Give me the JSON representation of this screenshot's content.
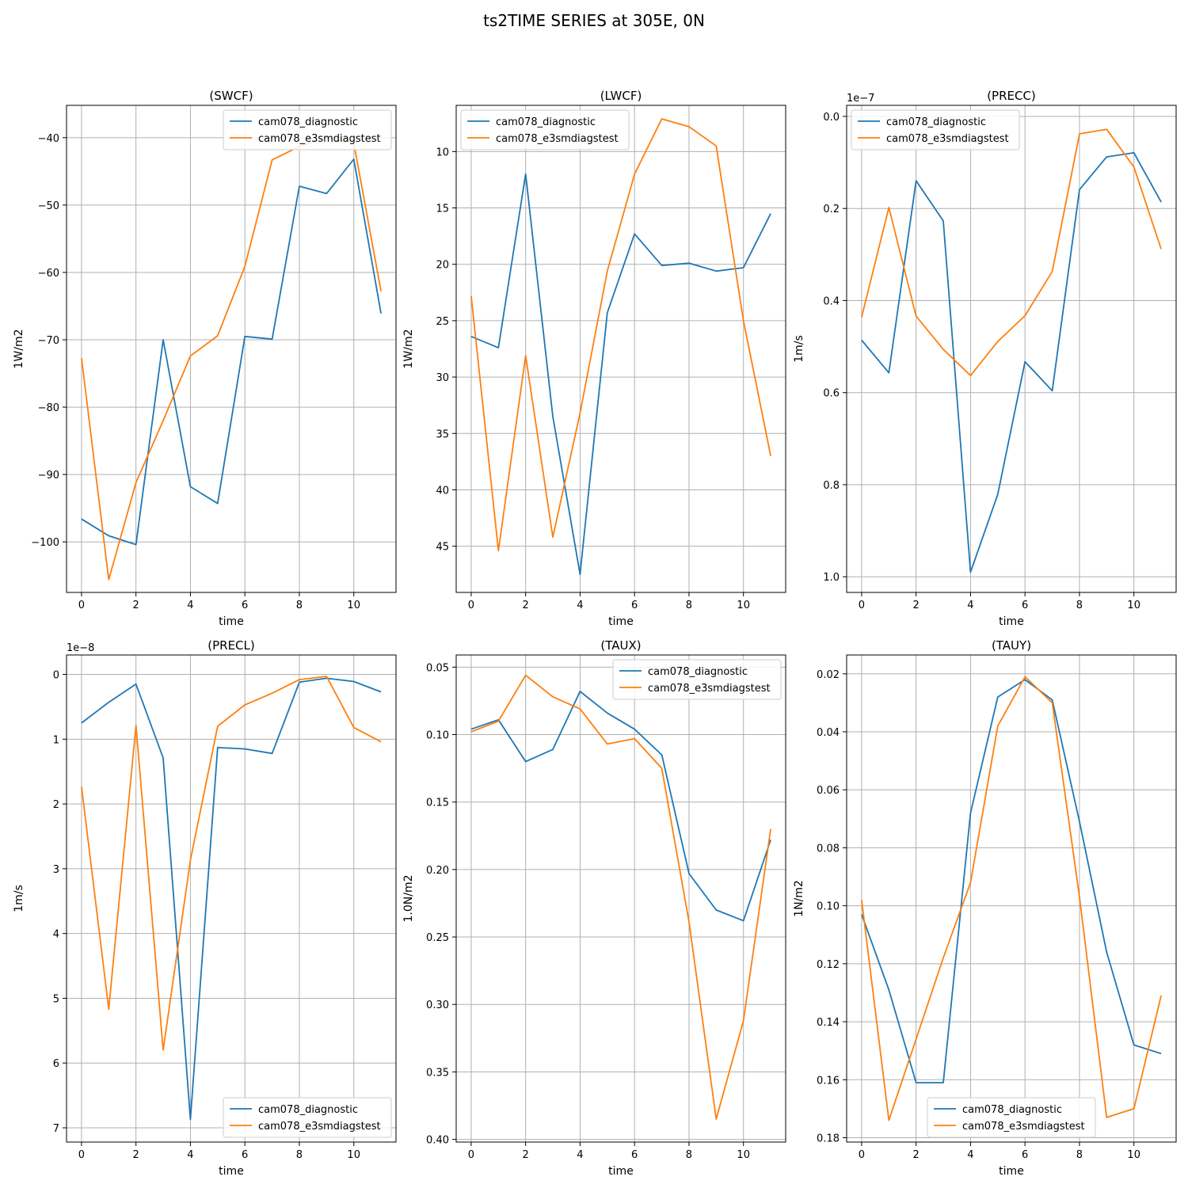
{
  "figure": {
    "suptitle": "ts2TIME SERIES at 305E, 0N",
    "colors": {
      "series_0": "#1f77b4",
      "series_1": "#ff7f0e",
      "grid": "#b0b0b0",
      "axes": "#000000"
    }
  },
  "chart_data": [
    {
      "type": "line",
      "title": "(SWCF)",
      "xlabel": "time",
      "ylabel": "1W/m2",
      "x": [
        0,
        1,
        2,
        3,
        4,
        5,
        6,
        7,
        8,
        9,
        10,
        11
      ],
      "xlim": [
        -0.55,
        11.55
      ],
      "xticks": [
        0,
        2,
        4,
        6,
        8,
        10
      ],
      "xtick_labels": [
        "0",
        "2",
        "4",
        "6",
        "8",
        "10"
      ],
      "ylim": [
        -107.5,
        -35.2
      ],
      "y_inverted": false,
      "yticks": [
        -100,
        -90,
        -80,
        -70,
        -60,
        -50,
        -40
      ],
      "ytick_labels": [
        "−100",
        "−90",
        "−80",
        "−70",
        "−60",
        "−50",
        "−40"
      ],
      "offset_text": "",
      "grid": true,
      "legend": "upper right",
      "series": [
        {
          "name": "cam078_diagnostic",
          "color": "#1f77b4",
          "values": [
            -96.6,
            -99.1,
            -100.4,
            -70.0,
            -91.8,
            -94.3,
            -69.5,
            -69.9,
            -47.2,
            -48.3,
            -43.2,
            -66.1
          ]
        },
        {
          "name": "cam078_e3smdiagstest",
          "color": "#ff7f0e",
          "values": [
            -72.7,
            -105.6,
            -91.2,
            -82.0,
            -72.4,
            -69.4,
            -59.1,
            -43.3,
            -41.3,
            -40.0,
            -40.8,
            -62.8
          ]
        }
      ]
    },
    {
      "type": "line",
      "title": "(LWCF)",
      "xlabel": "time",
      "ylabel": "1W/m2",
      "x": [
        0,
        1,
        2,
        3,
        4,
        5,
        6,
        7,
        8,
        9,
        10,
        11
      ],
      "xlim": [
        -0.55,
        11.55
      ],
      "xticks": [
        0,
        2,
        4,
        6,
        8,
        10
      ],
      "xtick_labels": [
        "0",
        "2",
        "4",
        "6",
        "8",
        "10"
      ],
      "ylim": [
        5.9,
        49.1
      ],
      "y_inverted": true,
      "yticks": [
        10,
        15,
        20,
        25,
        30,
        35,
        40,
        45
      ],
      "ytick_labels": [
        "10",
        "15",
        "20",
        "25",
        "30",
        "35",
        "40",
        "45"
      ],
      "offset_text": "",
      "grid": true,
      "legend": "upper left",
      "series": [
        {
          "name": "cam078_diagnostic",
          "color": "#1f77b4",
          "values": [
            26.4,
            27.4,
            12.0,
            33.5,
            47.5,
            24.3,
            17.3,
            20.1,
            19.9,
            20.6,
            20.3,
            15.5
          ]
        },
        {
          "name": "cam078_e3smdiagstest",
          "color": "#ff7f0e",
          "values": [
            22.8,
            45.4,
            28.1,
            44.2,
            33.2,
            20.6,
            12.0,
            7.1,
            7.8,
            9.5,
            25.0,
            37.0
          ]
        }
      ]
    },
    {
      "type": "line",
      "title": "(PRECC)",
      "xlabel": "time",
      "ylabel": "1m/s",
      "x": [
        0,
        1,
        2,
        3,
        4,
        5,
        6,
        7,
        8,
        9,
        10,
        11
      ],
      "xlim": [
        -0.55,
        11.55
      ],
      "xticks": [
        0,
        2,
        4,
        6,
        8,
        10
      ],
      "xtick_labels": [
        "0",
        "2",
        "4",
        "6",
        "8",
        "10"
      ],
      "ylim": [
        -0.024,
        1.034
      ],
      "y_inverted": true,
      "yticks": [
        0.0,
        0.2,
        0.4,
        0.6,
        0.8,
        1.0
      ],
      "ytick_labels": [
        "0.0",
        "0.2",
        "0.4",
        "0.6",
        "0.8",
        "1.0"
      ],
      "offset_text": "1e−7",
      "grid": true,
      "legend": "upper left",
      "series": [
        {
          "name": "cam078_diagnostic",
          "color": "#1f77b4",
          "values": [
            0.486,
            0.557,
            0.14,
            0.227,
            0.99,
            0.821,
            0.533,
            0.596,
            0.159,
            0.088,
            0.079,
            0.186
          ]
        },
        {
          "name": "cam078_e3smdiagstest",
          "color": "#ff7f0e",
          "values": [
            0.436,
            0.198,
            0.434,
            0.506,
            0.563,
            0.489,
            0.433,
            0.337,
            0.038,
            0.028,
            0.11,
            0.288
          ]
        }
      ]
    },
    {
      "type": "line",
      "title": "(PRECL)",
      "xlabel": "time",
      "ylabel": "1m/s",
      "x": [
        0,
        1,
        2,
        3,
        4,
        5,
        6,
        7,
        8,
        9,
        10,
        11
      ],
      "xlim": [
        -0.55,
        11.55
      ],
      "xticks": [
        0,
        2,
        4,
        6,
        8,
        10
      ],
      "xtick_labels": [
        "0",
        "2",
        "4",
        "6",
        "8",
        "10"
      ],
      "ylim": [
        -0.3,
        7.22
      ],
      "y_inverted": true,
      "yticks": [
        0,
        1,
        2,
        3,
        4,
        5,
        6,
        7
      ],
      "ytick_labels": [
        "0",
        "1",
        "2",
        "3",
        "4",
        "5",
        "6",
        "7"
      ],
      "offset_text": "1e−8",
      "grid": true,
      "legend": "lower right",
      "series": [
        {
          "name": "cam078_diagnostic",
          "color": "#1f77b4",
          "values": [
            0.75,
            0.43,
            0.15,
            1.29,
            6.87,
            1.13,
            1.15,
            1.22,
            0.12,
            0.06,
            0.11,
            0.27
          ]
        },
        {
          "name": "cam078_e3smdiagstest",
          "color": "#ff7f0e",
          "values": [
            1.73,
            5.17,
            0.79,
            5.8,
            2.87,
            0.8,
            0.47,
            0.29,
            0.08,
            0.03,
            0.82,
            1.04
          ]
        }
      ]
    },
    {
      "type": "line",
      "title": "(TAUX)",
      "xlabel": "time",
      "ylabel": "1.0N/m2",
      "x": [
        0,
        1,
        2,
        3,
        4,
        5,
        6,
        7,
        8,
        9,
        10,
        11
      ],
      "xlim": [
        -0.55,
        11.55
      ],
      "xticks": [
        0,
        2,
        4,
        6,
        8,
        10
      ],
      "xtick_labels": [
        "0",
        "2",
        "4",
        "6",
        "8",
        "10"
      ],
      "ylim": [
        0.041,
        0.402
      ],
      "y_inverted": true,
      "yticks": [
        0.05,
        0.1,
        0.15,
        0.2,
        0.25,
        0.3,
        0.35,
        0.4
      ],
      "ytick_labels": [
        "0.05",
        "0.10",
        "0.15",
        "0.20",
        "0.25",
        "0.30",
        "0.35",
        "0.40"
      ],
      "offset_text": "",
      "grid": true,
      "legend": "upper right",
      "series": [
        {
          "name": "cam078_diagnostic",
          "color": "#1f77b4",
          "values": [
            0.096,
            0.089,
            0.12,
            0.111,
            0.068,
            0.084,
            0.096,
            0.115,
            0.203,
            0.23,
            0.238,
            0.178
          ]
        },
        {
          "name": "cam078_e3smdiagstest",
          "color": "#ff7f0e",
          "values": [
            0.098,
            0.09,
            0.056,
            0.072,
            0.081,
            0.107,
            0.103,
            0.125,
            0.239,
            0.385,
            0.312,
            0.17
          ]
        }
      ]
    },
    {
      "type": "line",
      "title": "(TAUY)",
      "xlabel": "time",
      "ylabel": "1N/m2",
      "x": [
        0,
        1,
        2,
        3,
        4,
        5,
        6,
        7,
        8,
        9,
        10,
        11
      ],
      "xlim": [
        -0.55,
        11.55
      ],
      "xticks": [
        0,
        2,
        4,
        6,
        8,
        10
      ],
      "xtick_labels": [
        "0",
        "2",
        "4",
        "6",
        "8",
        "10"
      ],
      "ylim": [
        0.0135,
        0.1815
      ],
      "y_inverted": true,
      "yticks": [
        0.02,
        0.04,
        0.06,
        0.08,
        0.1,
        0.12,
        0.14,
        0.16,
        0.18
      ],
      "ytick_labels": [
        "0.02",
        "0.04",
        "0.06",
        "0.08",
        "0.10",
        "0.12",
        "0.14",
        "0.16",
        "0.18"
      ],
      "offset_text": "",
      "grid": true,
      "legend": "lower center",
      "series": [
        {
          "name": "cam078_diagnostic",
          "color": "#1f77b4",
          "values": [
            0.103,
            0.129,
            0.161,
            0.161,
            0.068,
            0.028,
            0.022,
            0.029,
            0.071,
            0.116,
            0.148,
            0.151
          ]
        },
        {
          "name": "cam078_e3smdiagstest",
          "color": "#ff7f0e",
          "values": [
            0.098,
            0.174,
            0.146,
            0.118,
            0.092,
            0.038,
            0.021,
            0.03,
            0.097,
            0.173,
            0.17,
            0.131
          ]
        }
      ]
    }
  ]
}
